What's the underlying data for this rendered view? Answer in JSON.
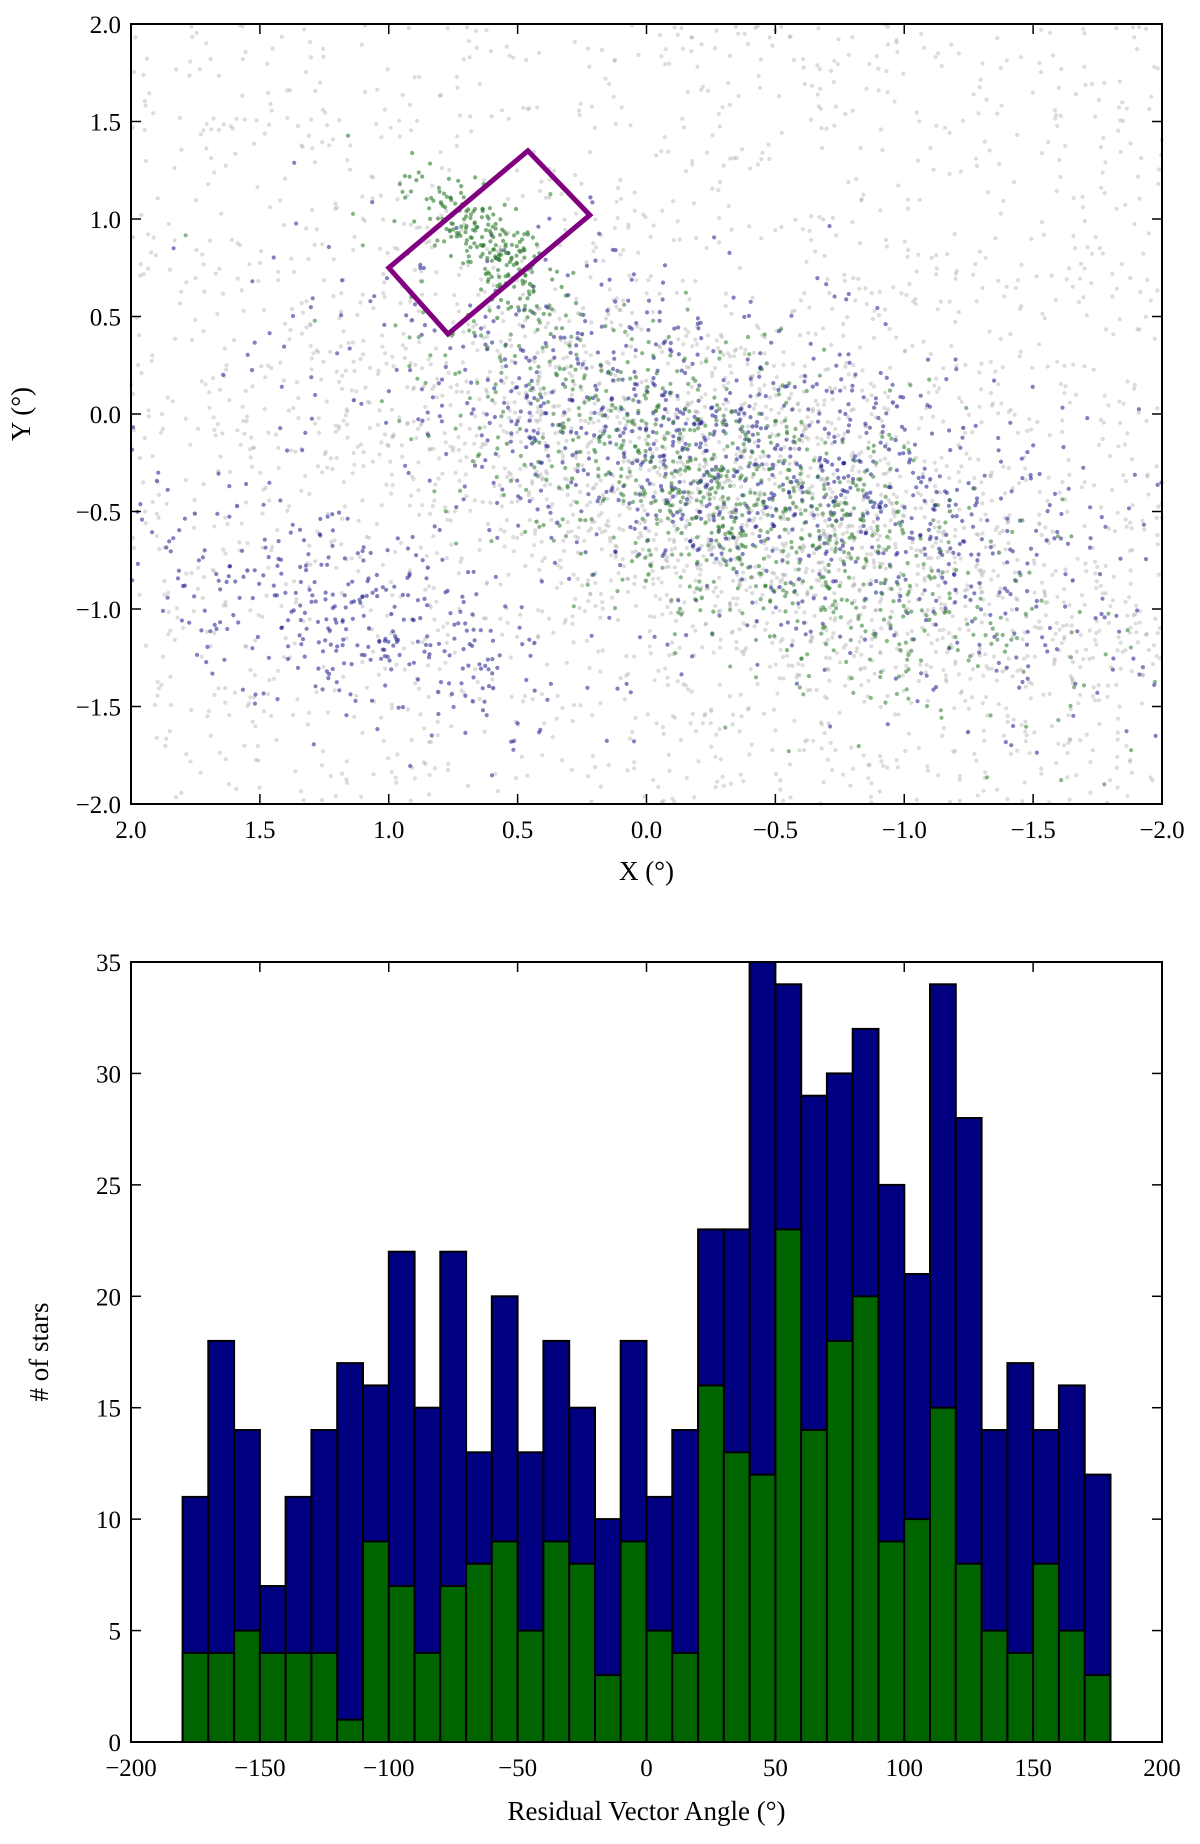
{
  "chart_data": [
    {
      "type": "scatter",
      "xlabel": "X (°)",
      "ylabel": "Y (°)",
      "xlim": [
        2.0,
        -2.0
      ],
      "ylim": [
        -2.0,
        2.0
      ],
      "x_inverted": true,
      "xticks": [
        "2.0",
        "1.5",
        "1.0",
        "0.5",
        "0.0",
        "−0.5",
        "−1.0",
        "−1.5",
        "−2.0"
      ],
      "yticks": [
        "−2.0",
        "−1.5",
        "−1.0",
        "−0.5",
        "0.0",
        "0.5",
        "1.0",
        "1.5",
        "2.0"
      ],
      "series": [
        {
          "color": "#9a9a9a",
          "density": "dense, covering whole field"
        },
        {
          "color": "#1a1a8c",
          "density": "concentrated along central band and lower-left arm"
        },
        {
          "color": "#2a7a2a",
          "density": "concentrated in central bar and boxed region"
        }
      ],
      "annotation": {
        "shape": "rotated-rectangle",
        "color": "#800080",
        "corners": [
          [
            1.0,
            0.75
          ],
          [
            0.46,
            1.35
          ],
          [
            0.22,
            1.02
          ],
          [
            0.77,
            0.41
          ]
        ]
      },
      "grid": false
    },
    {
      "type": "bar",
      "stacked": false,
      "xlabel": "Residual Vector Angle (°)",
      "ylabel": "# of stars",
      "xlim": [
        -200,
        200
      ],
      "ylim": [
        0,
        35
      ],
      "xticks": [
        "−200",
        "−150",
        "−100",
        "−50",
        "0",
        "50",
        "100",
        "150",
        "200"
      ],
      "yticks": [
        "0",
        "5",
        "10",
        "15",
        "20",
        "25",
        "30",
        "35"
      ],
      "bin_start": -180,
      "bin_width": 10,
      "series": [
        {
          "color": "#000080",
          "values": [
            11,
            18,
            14,
            7,
            11,
            14,
            17,
            16,
            22,
            15,
            22,
            13,
            20,
            13,
            18,
            15,
            10,
            18,
            11,
            14,
            23,
            23,
            35,
            34,
            29,
            30,
            32,
            25,
            21,
            34,
            28,
            14,
            17,
            14,
            16,
            12
          ]
        },
        {
          "color": "#006400",
          "values": [
            4,
            4,
            5,
            4,
            4,
            4,
            1,
            9,
            7,
            4,
            7,
            8,
            9,
            5,
            9,
            8,
            3,
            9,
            5,
            4,
            16,
            13,
            12,
            23,
            14,
            18,
            20,
            9,
            10,
            15,
            8,
            5,
            4,
            8,
            5,
            3
          ]
        }
      ],
      "grid": false
    }
  ]
}
